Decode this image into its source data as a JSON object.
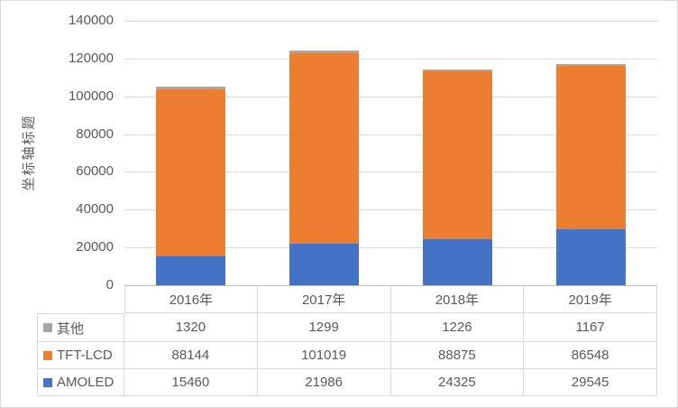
{
  "chart_data": {
    "type": "bar",
    "stacked": true,
    "title": "",
    "xlabel": "",
    "ylabel": "坐标轴标题",
    "categories": [
      "2016年",
      "2017年",
      "2018年",
      "2019年"
    ],
    "series": [
      {
        "name": "AMOLED",
        "color": "#4472C4",
        "values": [
          15460,
          21986,
          24325,
          29545
        ]
      },
      {
        "name": "TFT-LCD",
        "color": "#ED7D31",
        "values": [
          88144,
          101019,
          88875,
          86548
        ]
      },
      {
        "name": "其他",
        "color": "#A6A6A6",
        "values": [
          1320,
          1299,
          1226,
          1167
        ]
      }
    ],
    "stack_order": "bottom-to-top",
    "ylim": [
      0,
      140000
    ],
    "yticks": [
      0,
      20000,
      40000,
      60000,
      80000,
      100000,
      120000,
      140000
    ],
    "ytick_labels": [
      "0",
      "20000",
      "40000",
      "60000",
      "80000",
      "100000",
      "120000",
      "140000"
    ],
    "grid": true,
    "legend_position": "data-table-row-labels",
    "data_table": {
      "shown": true,
      "row_order_top_to_bottom": [
        "其他",
        "TFT-LCD",
        "AMOLED"
      ]
    }
  },
  "colors": {
    "grid": "#D9D9D9",
    "axis_line": "#BFBFBF",
    "table_border": "#D9D9D9",
    "text": "#595959",
    "background": "#FFFFFF"
  }
}
